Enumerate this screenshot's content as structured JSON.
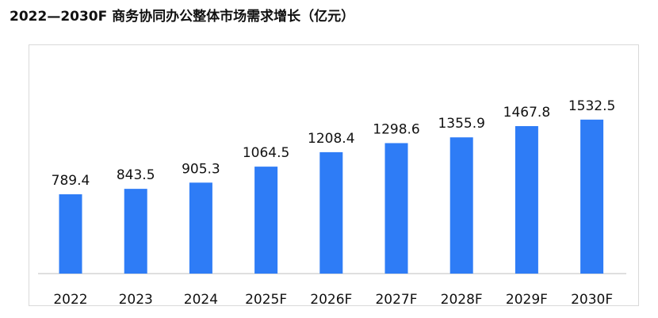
{
  "chart_data": {
    "type": "bar",
    "title": "2022—2030F  商务协同办公整体市场需求增长（亿元）",
    "categories": [
      "2022",
      "2023",
      "2024",
      "2025F",
      "2026F",
      "2027F",
      "2028F",
      "2029F",
      "2030F"
    ],
    "values": [
      789.4,
      843.5,
      905.3,
      1064.5,
      1208.4,
      1298.6,
      1355.9,
      1467.8,
      1532.5
    ],
    "value_labels": [
      "789.4",
      "843.5",
      "905.3",
      "1064.5",
      "1208.4",
      "1298.6",
      "1355.9",
      "1467.8",
      "1532.5"
    ],
    "xlabel": "",
    "ylabel": "",
    "ylim": [
      0,
      1800
    ],
    "grid": false,
    "legend": "none",
    "bar_color": "#2E7CF6",
    "axis_color": "#bfbfbf"
  }
}
